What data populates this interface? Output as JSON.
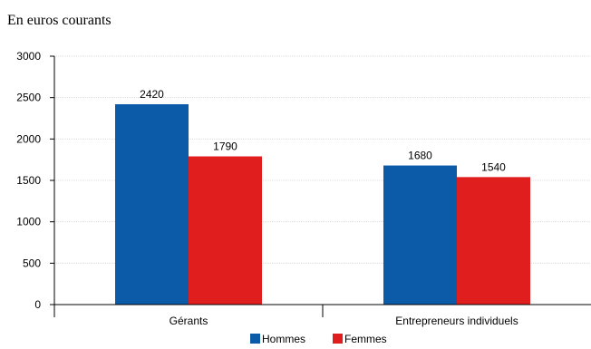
{
  "chart_data": {
    "type": "bar",
    "title": "En euros courants",
    "categories": [
      "Gérants",
      "Entrepreneurs individuels"
    ],
    "series": [
      {
        "name": "Hommes",
        "values": [
          2420,
          1680
        ],
        "color": "#0b5ba8"
      },
      {
        "name": "Femmes",
        "values": [
          1790,
          1540
        ],
        "color": "#e01e1e"
      }
    ],
    "ylim": [
      0,
      3000
    ],
    "yticks": [
      0,
      500,
      1000,
      1500,
      2000,
      2500,
      3000
    ],
    "grid": true,
    "legend": "bottom"
  }
}
